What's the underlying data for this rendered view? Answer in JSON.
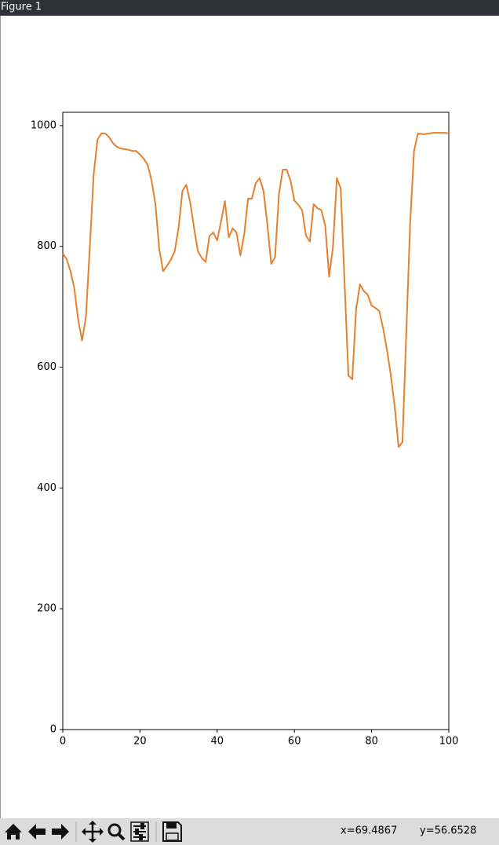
{
  "window": {
    "title": "Figure 1"
  },
  "toolbar": {
    "status_x": "x=69.4867",
    "status_y": "y=56.6528"
  },
  "chart_data": {
    "type": "line",
    "x": [
      0,
      1,
      2,
      3,
      4,
      5,
      6,
      7,
      8,
      9,
      10,
      11,
      12,
      13,
      14,
      15,
      16,
      17,
      18,
      19,
      20,
      21,
      22,
      23,
      24,
      25,
      26,
      27,
      28,
      29,
      30,
      31,
      32,
      33,
      34,
      35,
      36,
      37,
      38,
      39,
      40,
      41,
      42,
      43,
      44,
      45,
      46,
      47,
      48,
      49,
      50,
      51,
      52,
      53,
      54,
      55,
      56,
      57,
      58,
      59,
      60,
      61,
      62,
      63,
      64,
      65,
      66,
      67,
      68,
      69,
      70,
      71,
      72,
      73,
      74,
      75,
      76,
      77,
      78,
      79,
      80,
      81,
      82,
      83,
      84,
      85,
      86,
      87,
      88,
      89,
      90,
      91,
      92,
      93,
      94,
      95,
      96,
      97,
      98,
      99,
      100
    ],
    "values": [
      788,
      779,
      759,
      730,
      678,
      644,
      683,
      798,
      919,
      977,
      987,
      987,
      981,
      971,
      965,
      962,
      961,
      960,
      958,
      958,
      952,
      945,
      935,
      909,
      870,
      795,
      759,
      768,
      778,
      792,
      831,
      892,
      902,
      873,
      831,
      792,
      781,
      774,
      817,
      823,
      810,
      841,
      875,
      815,
      830,
      823,
      785,
      820,
      879,
      879,
      905,
      913,
      892,
      836,
      771,
      782,
      886,
      927,
      927,
      909,
      876,
      869,
      860,
      818,
      808,
      870,
      863,
      860,
      834,
      750,
      800,
      913,
      896,
      740,
      586,
      580,
      697,
      737,
      726,
      720,
      702,
      698,
      693,
      664,
      628,
      586,
      534,
      468,
      476,
      659,
      840,
      958,
      987,
      986,
      986,
      987,
      988,
      988,
      988,
      988,
      987
    ],
    "color": "#e5802e",
    "xlim": [
      0,
      100
    ],
    "xticks": [
      0,
      20,
      40,
      60,
      80,
      100
    ],
    "ylim": [
      0,
      1022
    ],
    "yticks": [
      0,
      200,
      400,
      600,
      800,
      1000
    ]
  }
}
